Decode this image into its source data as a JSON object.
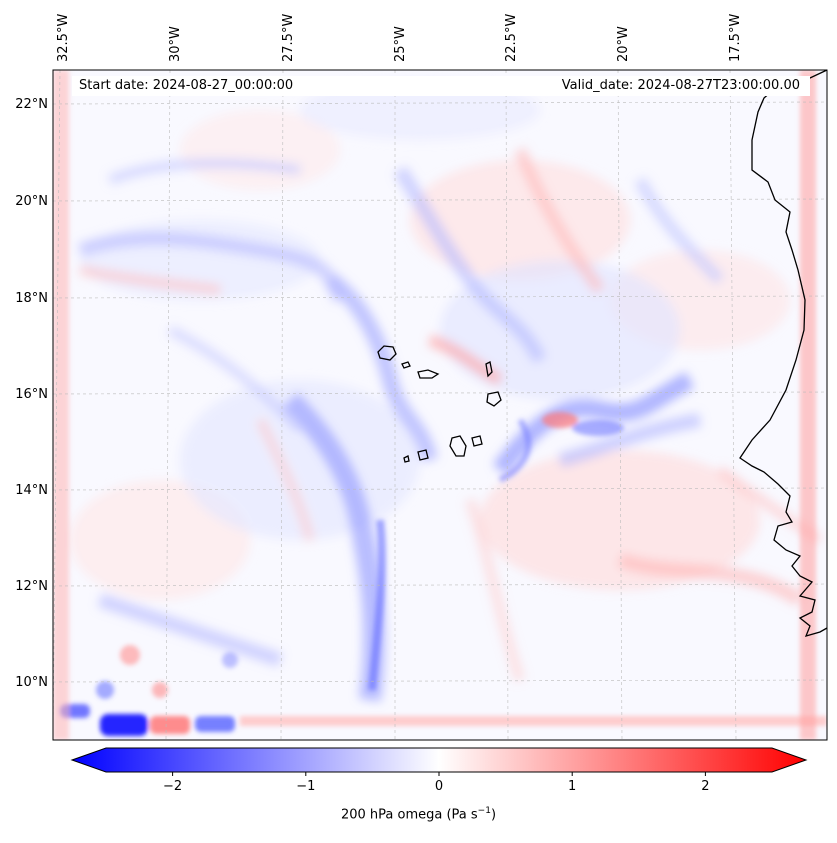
{
  "map": {
    "start_date": "Start date: 2024-08-27_00:00:00",
    "valid_date": "Valid_date: 2024-08-27T23:00:00.00",
    "longitude_labels": [
      "32.5°W",
      "30°W",
      "27.5°W",
      "25°W",
      "22.5°W",
      "20°W",
      "17.5°W"
    ],
    "latitude_labels": [
      "22°N",
      "20°N",
      "18°N",
      "16°N",
      "14°N",
      "12°N",
      "10°N"
    ],
    "field_variable": "200 hPa omega",
    "extent": {
      "lon_min": -33.0,
      "lon_max": -15.2,
      "lat_min": 8.8,
      "lat_max": 22.8
    }
  },
  "colorbar": {
    "title_prefix": "200 hPa omega (Pa s",
    "title_exp": "−1",
    "title_suffix": ")",
    "tick_labels": [
      "−2",
      "−1",
      "0",
      "1",
      "2"
    ],
    "tick_values": [
      -2,
      -1,
      0,
      1,
      2
    ],
    "range": [
      -2.5,
      2.5
    ],
    "extend": "both",
    "colormap": "bwr",
    "color_low": "#0000ff",
    "color_mid": "#ffffff",
    "color_high": "#ff0000"
  }
}
